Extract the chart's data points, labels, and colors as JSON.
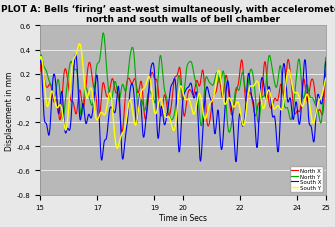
{
  "title": "PLOT A: Bells ‘firing’ east-west simultaneously, with accelerometers on\nnorth and south walls of bell chamber",
  "xlabel": "Time in Secs",
  "ylabel": "Displacement in mm",
  "xlim": [
    15,
    25
  ],
  "ylim": [
    -0.8,
    0.6
  ],
  "yticks": [
    -0.8,
    -0.6,
    -0.4,
    -0.2,
    0.0,
    0.2,
    0.4,
    0.6
  ],
  "xticks": [
    15,
    17,
    19,
    20,
    22,
    24,
    25
  ],
  "xtick_labels": [
    "15",
    "17",
    "19",
    "20",
    "22",
    "24",
    "25"
  ],
  "outer_bg": "#e8e8e8",
  "plot_bg": "#b8b8b8",
  "grid_color": "#d0d0d0",
  "series": {
    "North X": {
      "color": "#ff0000",
      "lw": 0.8
    },
    "North Y": {
      "color": "#00aa00",
      "lw": 0.8
    },
    "South X": {
      "color": "#0000ff",
      "lw": 0.8
    },
    "South Y": {
      "color": "#ffff00",
      "lw": 1.0
    }
  },
  "legend_loc": "lower right",
  "title_fontsize": 6.5,
  "label_fontsize": 5.5,
  "tick_fontsize": 5.0
}
